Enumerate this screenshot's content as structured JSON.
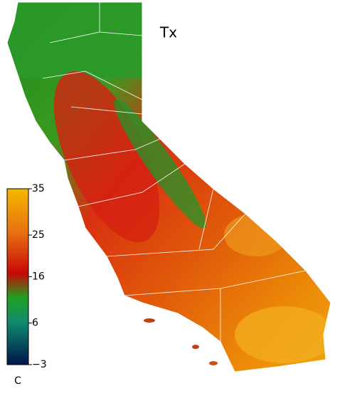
{
  "title": "Tx",
  "colorbar": {
    "unit": "C",
    "lim": [
      -3,
      35
    ],
    "ticks": [
      35,
      25,
      16,
      6,
      {
        "value": -3,
        "label": "−3"
      }
    ]
  }
}
